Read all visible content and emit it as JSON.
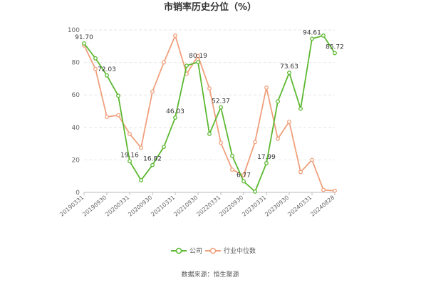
{
  "chart_data": {
    "type": "line",
    "title": "市销率历史分位（%）",
    "x": [
      "20190331",
      "20190630",
      "20190930",
      "20191231",
      "20200331",
      "20200630",
      "20200930",
      "20201231",
      "20210331",
      "20210630",
      "20210930",
      "20211231",
      "20220331",
      "20220630",
      "20220930",
      "20221231",
      "20230331",
      "20230630",
      "20230930",
      "20231231",
      "20240331",
      "20240630",
      "20240828"
    ],
    "x_tick_labels": [
      "20190331",
      "20190930",
      "20200331",
      "20200930",
      "20210331",
      "20210930",
      "20220331",
      "20220930",
      "20230331",
      "20230930",
      "20240331",
      "20240828"
    ],
    "ylim": [
      0,
      100
    ],
    "yticks": [
      0,
      20,
      40,
      60,
      80,
      100
    ],
    "grid": true,
    "series": [
      {
        "name": "公司",
        "color": "#5cb831",
        "values": [
          91.7,
          82.5,
          72.03,
          59.5,
          19.16,
          7.5,
          16.82,
          28.0,
          46.03,
          78.0,
          80.19,
          36.0,
          52.37,
          22.5,
          6.77,
          0.5,
          17.99,
          56.0,
          73.63,
          51.5,
          94.61,
          96.5,
          85.72
        ],
        "labels": [
          "91.70",
          "",
          "72.03",
          "",
          "19.16",
          "",
          "16.82",
          "",
          "46.03",
          "",
          "80.19",
          "",
          "52.37",
          "",
          "6.77",
          "",
          "17.99",
          "",
          "73.63",
          "",
          "94.61",
          "",
          "85.72"
        ]
      },
      {
        "name": "行业中位数",
        "color": "#f0a07c",
        "values": [
          90.5,
          76.0,
          46.5,
          47.5,
          36.0,
          27.5,
          62.0,
          80.0,
          96.5,
          73.0,
          84.0,
          64.0,
          30.5,
          14.0,
          10.5,
          31.0,
          64.5,
          33.0,
          43.5,
          12.5,
          20.0,
          1.5,
          1.0
        ]
      }
    ],
    "legend_position": "bottom-center",
    "source": "数据来源：恒生聚源"
  }
}
